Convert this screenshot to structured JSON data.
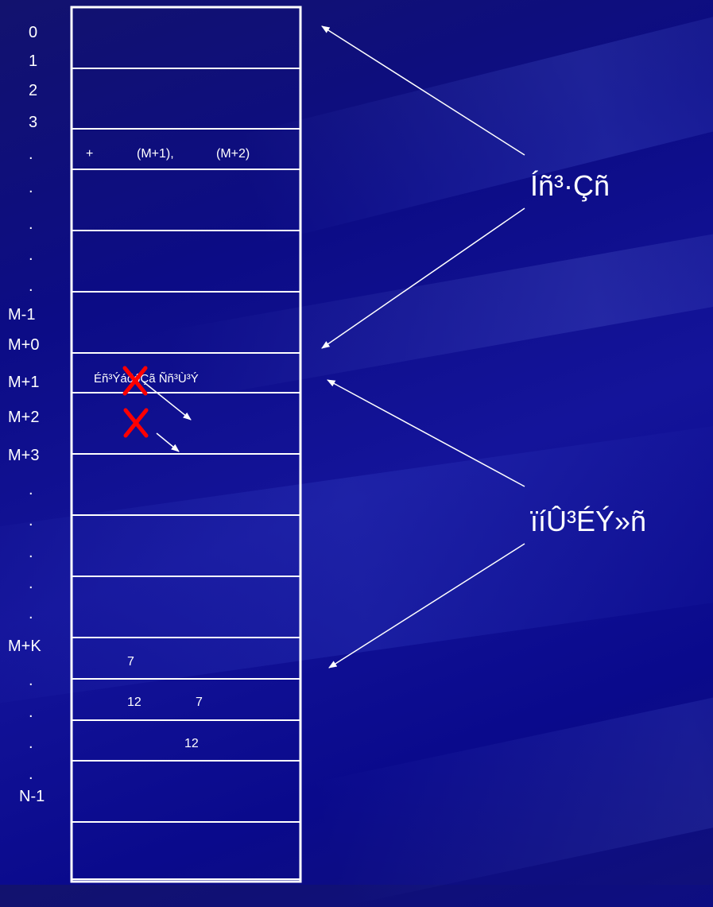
{
  "row_labels": [
    "0",
    "1",
    "2",
    "3",
    ".",
    ".",
    ".",
    ".",
    ".",
    "M-1",
    "M+0",
    "M+1",
    "M+2",
    "M+3",
    ".",
    ".",
    ".",
    ".",
    ".",
    "M+K",
    ".",
    ".",
    ".",
    ".",
    "N-1"
  ],
  "cell_texts": [
    "+",
    "(M+1),",
    "(M+2)",
    "Éñ³ÝáõóÇã Ññ³Ù³Ý",
    "7",
    "12",
    "7",
    "12"
  ],
  "callouts": [
    "Íñ³·Çñ",
    "ïíÛ³ÉÝ»ñ"
  ],
  "colors": {
    "line": "#ffffff",
    "cross": "#ff0000",
    "background": "#0c0c86"
  }
}
